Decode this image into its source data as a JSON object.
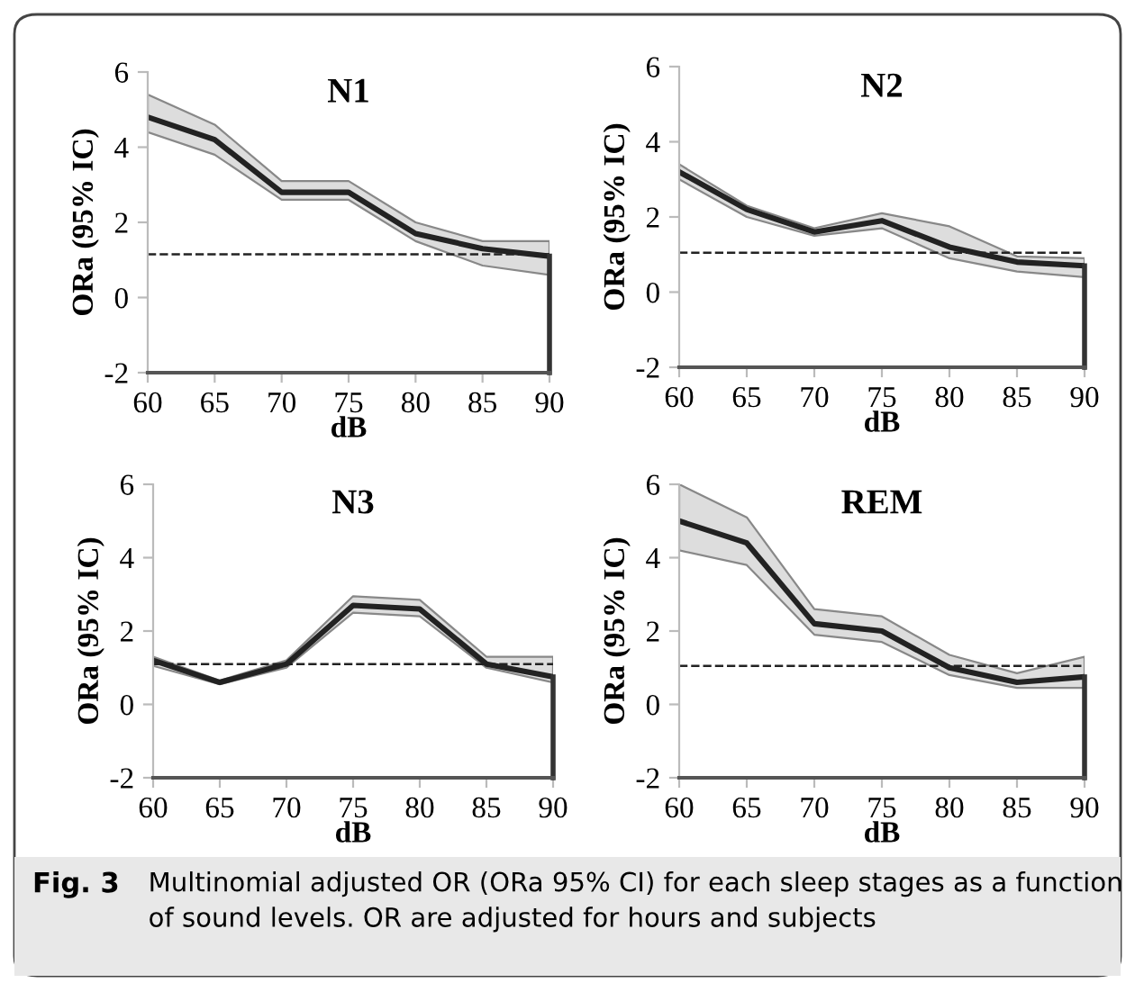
{
  "chart_data": [
    {
      "type": "line",
      "title": "N1",
      "xlabel": "dB",
      "ylabel": "ORa (95% IC)",
      "x": [
        60,
        65,
        70,
        75,
        80,
        85,
        90
      ],
      "xlim": [
        60,
        90
      ],
      "xticks": [
        60,
        65,
        70,
        75,
        80,
        85,
        90
      ],
      "ylim": [
        -2,
        6
      ],
      "yticks": [
        -2,
        0,
        2,
        4,
        6
      ],
      "grid": false,
      "legend": false,
      "series": [
        {
          "color": "#222222",
          "values": [
            4.8,
            4.2,
            2.8,
            2.8,
            1.7,
            1.3,
            1.1
          ],
          "lower": [
            4.4,
            3.8,
            2.6,
            2.6,
            1.5,
            0.85,
            0.6
          ],
          "upper": [
            5.4,
            4.6,
            3.1,
            3.1,
            2.0,
            1.5,
            1.5
          ]
        }
      ],
      "ref_lines": [
        {
          "axis": "y",
          "value": 1.15,
          "color": "#222222",
          "line_style": "dashed"
        }
      ]
    },
    {
      "type": "line",
      "title": "N2",
      "xlabel": "dB",
      "ylabel": "ORa (95% IC)",
      "x": [
        60,
        65,
        70,
        75,
        80,
        85,
        90
      ],
      "xlim": [
        60,
        90
      ],
      "xticks": [
        60,
        65,
        70,
        75,
        80,
        85,
        90
      ],
      "ylim": [
        -2,
        6
      ],
      "yticks": [
        -2,
        0,
        2,
        4,
        6
      ],
      "grid": false,
      "legend": false,
      "series": [
        {
          "color": "#222222",
          "values": [
            3.2,
            2.2,
            1.6,
            1.9,
            1.2,
            0.8,
            0.7
          ],
          "lower": [
            3.0,
            2.0,
            1.5,
            1.7,
            0.9,
            0.55,
            0.4
          ],
          "upper": [
            3.4,
            2.3,
            1.7,
            2.1,
            1.75,
            0.95,
            0.9
          ]
        }
      ],
      "ref_lines": [
        {
          "axis": "y",
          "value": 1.05,
          "color": "#222222",
          "line_style": "dashed"
        }
      ]
    },
    {
      "type": "line",
      "title": "N3",
      "xlabel": "dB",
      "ylabel": "ORa (95% IC)",
      "x": [
        60,
        65,
        70,
        75,
        80,
        85,
        90
      ],
      "xlim": [
        60,
        90
      ],
      "xticks": [
        60,
        65,
        70,
        75,
        80,
        85,
        90
      ],
      "ylim": [
        -2,
        6
      ],
      "yticks": [
        -2,
        0,
        2,
        4,
        6
      ],
      "grid": false,
      "legend": false,
      "series": [
        {
          "color": "#222222",
          "values": [
            1.2,
            0.6,
            1.1,
            2.7,
            2.6,
            1.1,
            0.75
          ],
          "lower": [
            1.05,
            0.55,
            1.0,
            2.5,
            2.4,
            1.0,
            0.6
          ],
          "upper": [
            1.3,
            0.65,
            1.2,
            2.95,
            2.85,
            1.3,
            1.3
          ]
        }
      ],
      "ref_lines": [
        {
          "axis": "y",
          "value": 1.1,
          "color": "#222222",
          "line_style": "dashed"
        }
      ]
    },
    {
      "type": "line",
      "title": "REM",
      "xlabel": "dB",
      "ylabel": "ORa (95% IC)",
      "x": [
        60,
        65,
        70,
        75,
        80,
        85,
        90
      ],
      "xlim": [
        60,
        90
      ],
      "xticks": [
        60,
        65,
        70,
        75,
        80,
        85,
        90
      ],
      "ylim": [
        -2,
        6
      ],
      "yticks": [
        -2,
        0,
        2,
        4,
        6
      ],
      "grid": false,
      "legend": false,
      "series": [
        {
          "color": "#222222",
          "values": [
            5.0,
            4.4,
            2.2,
            2.0,
            1.0,
            0.6,
            0.75
          ],
          "lower": [
            4.2,
            3.8,
            1.9,
            1.7,
            0.8,
            0.45,
            0.45
          ],
          "upper": [
            6.0,
            5.1,
            2.6,
            2.4,
            1.35,
            0.85,
            1.3
          ]
        }
      ],
      "ref_lines": [
        {
          "axis": "y",
          "value": 1.05,
          "color": "#222222",
          "line_style": "dashed"
        }
      ],
      "annotations": [
        "Fig. 3",
        "Multinomial adjusted OR (ORa 95% CI) for each sleep stages as a function of sound levels. OR are adjusted for hours and subjects"
      ]
    }
  ]
}
